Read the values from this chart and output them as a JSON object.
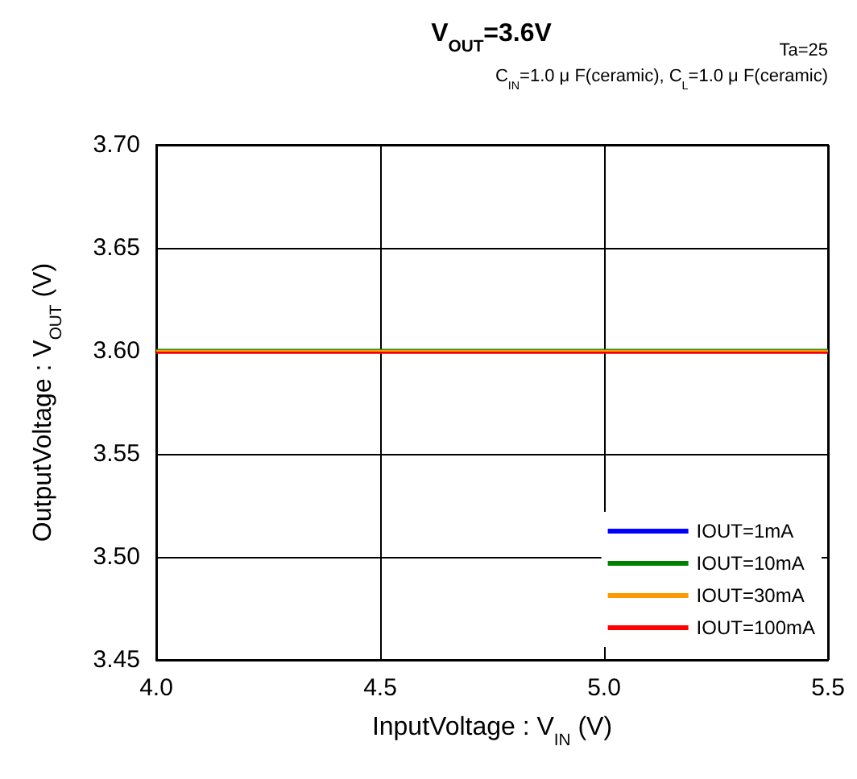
{
  "chart_data": {
    "type": "line",
    "title": "V$_{OUT}$=3.6V",
    "annotations": [
      "Ta=25",
      "C$_{IN}$=1.0 μ F(ceramic), C$_{L}$=1.0 μ F(ceramic)"
    ],
    "xlabel": "InputVoltage : V$_{IN}$ (V)",
    "ylabel": "OutputVoltage : V$_{OUT}$ (V)",
    "x": [
      4.0,
      5.5
    ],
    "series": [
      {
        "name": "IOUT=1mA",
        "color": "#0000ff",
        "values": [
          null,
          null
        ]
      },
      {
        "name": "IOUT=10mA",
        "color": "#008000",
        "values": [
          3.6005,
          3.6005
        ]
      },
      {
        "name": "IOUT=30mA",
        "color": "#ff9900",
        "values": [
          3.6,
          3.6
        ]
      },
      {
        "name": "IOUT=100mA",
        "color": "#ff0000",
        "values": [
          3.599,
          3.599
        ]
      }
    ],
    "xlim": [
      4.0,
      5.5
    ],
    "xticks": [
      {
        "value": 4.0,
        "label": "4.0"
      },
      4.5,
      {
        "value": 5.0,
        "label": "5.0"
      },
      5.5
    ],
    "ylim": [
      3.45,
      3.7
    ],
    "yticks": [
      3.45,
      {
        "value": 3.5,
        "label": "3.50"
      },
      3.55,
      {
        "value": 3.6,
        "label": "3.60"
      },
      3.65,
      {
        "value": 3.7,
        "label": "3.70"
      }
    ],
    "grid": true,
    "legend": "bottom right",
    "marker": "none",
    "line_style": "solid"
  }
}
